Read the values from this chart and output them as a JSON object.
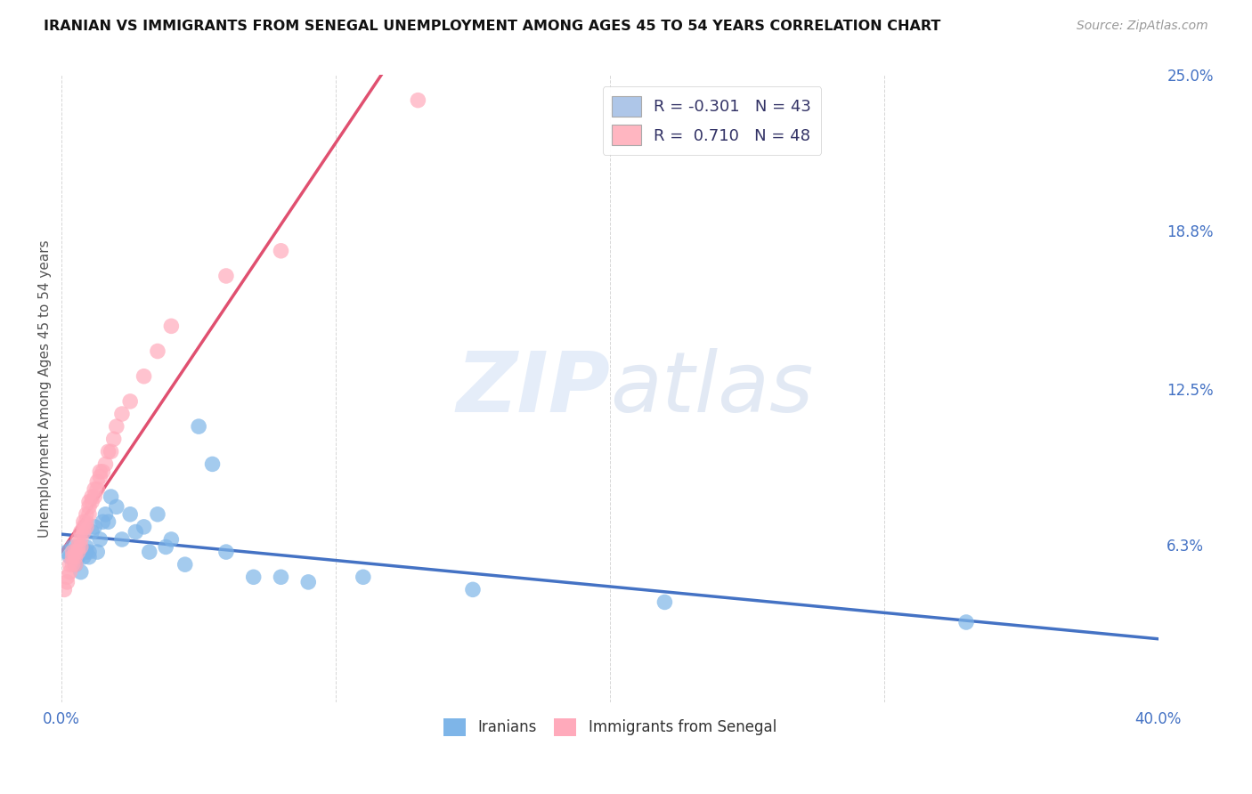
{
  "title": "IRANIAN VS IMMIGRANTS FROM SENEGAL UNEMPLOYMENT AMONG AGES 45 TO 54 YEARS CORRELATION CHART",
  "source": "Source: ZipAtlas.com",
  "ylabel": "Unemployment Among Ages 45 to 54 years",
  "xlim": [
    0.0,
    0.4
  ],
  "ylim": [
    0.0,
    0.25
  ],
  "yticks_right": [
    0.063,
    0.125,
    0.188,
    0.25
  ],
  "yticklabels_right": [
    "6.3%",
    "12.5%",
    "18.8%",
    "25.0%"
  ],
  "watermark_zip": "ZIP",
  "watermark_atlas": "atlas",
  "legend_items": [
    {
      "label_r": "R = -0.301",
      "label_n": "N = 43",
      "face_color": "#aec6e8"
    },
    {
      "label_r": "R =  0.710",
      "label_n": "N = 48",
      "face_color": "#ffb6c1"
    }
  ],
  "iranians_color": "#7eb5e8",
  "senegal_color": "#ffaabb",
  "trend_iranian_color": "#4472c4",
  "trend_senegal_color": "#e05070",
  "background_color": "#ffffff",
  "grid_color": "#cccccc",
  "iranians_x": [
    0.002,
    0.003,
    0.004,
    0.005,
    0.005,
    0.006,
    0.006,
    0.007,
    0.007,
    0.008,
    0.008,
    0.009,
    0.009,
    0.01,
    0.01,
    0.011,
    0.012,
    0.013,
    0.014,
    0.015,
    0.016,
    0.017,
    0.018,
    0.02,
    0.022,
    0.025,
    0.027,
    0.03,
    0.032,
    0.035,
    0.038,
    0.04,
    0.045,
    0.05,
    0.055,
    0.06,
    0.07,
    0.08,
    0.09,
    0.11,
    0.15,
    0.22,
    0.33
  ],
  "iranians_y": [
    0.06,
    0.058,
    0.062,
    0.055,
    0.06,
    0.058,
    0.062,
    0.06,
    0.052,
    0.06,
    0.058,
    0.062,
    0.06,
    0.06,
    0.058,
    0.068,
    0.07,
    0.06,
    0.065,
    0.072,
    0.075,
    0.072,
    0.082,
    0.078,
    0.065,
    0.075,
    0.068,
    0.07,
    0.06,
    0.075,
    0.062,
    0.065,
    0.055,
    0.11,
    0.095,
    0.06,
    0.05,
    0.05,
    0.048,
    0.05,
    0.045,
    0.04,
    0.032
  ],
  "senegal_x": [
    0.001,
    0.002,
    0.002,
    0.003,
    0.003,
    0.004,
    0.004,
    0.004,
    0.005,
    0.005,
    0.005,
    0.006,
    0.006,
    0.006,
    0.007,
    0.007,
    0.007,
    0.008,
    0.008,
    0.008,
    0.009,
    0.009,
    0.009,
    0.01,
    0.01,
    0.01,
    0.011,
    0.011,
    0.012,
    0.012,
    0.013,
    0.013,
    0.014,
    0.014,
    0.015,
    0.016,
    0.017,
    0.018,
    0.019,
    0.02,
    0.022,
    0.025,
    0.03,
    0.035,
    0.04,
    0.06,
    0.08,
    0.13
  ],
  "senegal_y": [
    0.045,
    0.05,
    0.048,
    0.052,
    0.055,
    0.055,
    0.058,
    0.06,
    0.06,
    0.058,
    0.055,
    0.06,
    0.062,
    0.065,
    0.062,
    0.065,
    0.068,
    0.068,
    0.072,
    0.07,
    0.07,
    0.072,
    0.075,
    0.075,
    0.078,
    0.08,
    0.08,
    0.082,
    0.082,
    0.085,
    0.085,
    0.088,
    0.09,
    0.092,
    0.092,
    0.095,
    0.1,
    0.1,
    0.105,
    0.11,
    0.115,
    0.12,
    0.13,
    0.14,
    0.15,
    0.17,
    0.18,
    0.24
  ]
}
